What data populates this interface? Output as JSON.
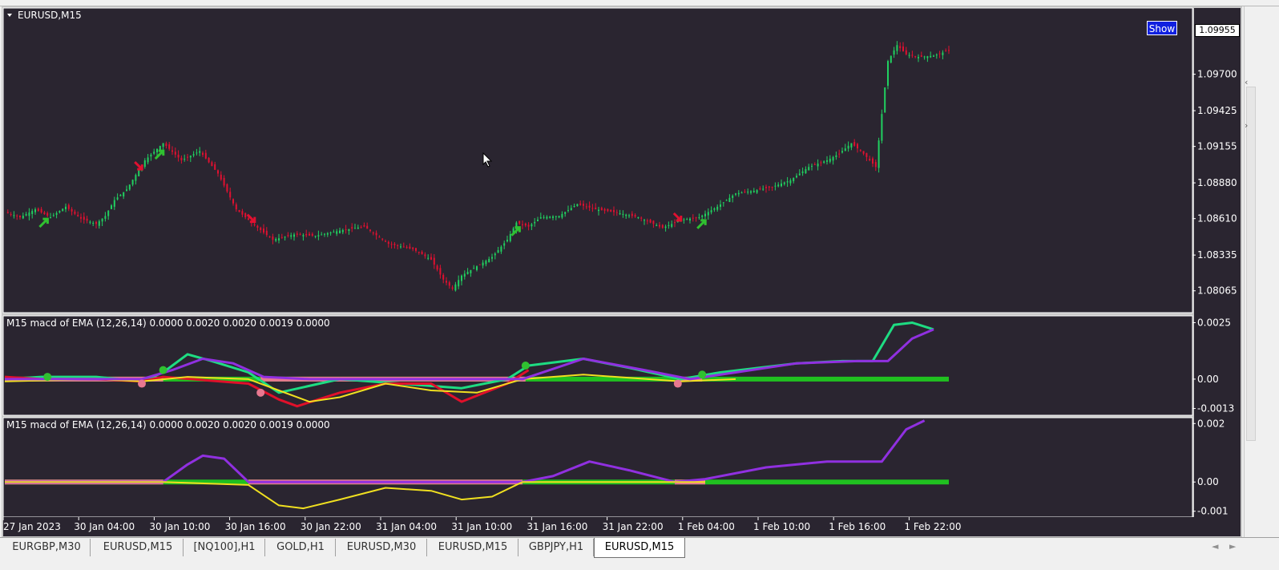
{
  "chart_data": [
    {
      "type": "candlestick",
      "title": "EURUSD,M15",
      "y_ticks": [
        1.097,
        1.09425,
        1.09155,
        1.0888,
        1.0861,
        1.08335,
        1.08065
      ],
      "y_tick_labels": [
        "1.09700",
        "1.09425",
        "1.09155",
        "1.08880",
        "1.08610",
        "1.08335",
        "1.08065"
      ],
      "current_price": "1.09955",
      "ylim": [
        1.079,
        1.102
      ],
      "close_path": [
        [
          0,
          1.0866
        ],
        [
          5,
          1.0862
        ],
        [
          10,
          1.0868
        ],
        [
          15,
          1.0862
        ],
        [
          20,
          1.087
        ],
        [
          25,
          1.0861
        ],
        [
          30,
          1.0857
        ],
        [
          33,
          1.0863
        ],
        [
          36,
          1.0875
        ],
        [
          40,
          1.0883
        ],
        [
          46,
          1.0905
        ],
        [
          52,
          1.0918
        ],
        [
          58,
          1.0905
        ],
        [
          64,
          1.0912
        ],
        [
          70,
          1.0895
        ],
        [
          76,
          1.0868
        ],
        [
          82,
          1.0856
        ],
        [
          88,
          1.0845
        ],
        [
          95,
          1.0849
        ],
        [
          102,
          1.0848
        ],
        [
          110,
          1.0852
        ],
        [
          118,
          1.0855
        ],
        [
          126,
          1.0842
        ],
        [
          134,
          1.0838
        ],
        [
          140,
          1.083
        ],
        [
          144,
          1.0815
        ],
        [
          147,
          1.0808
        ],
        [
          150,
          1.0818
        ],
        [
          155,
          1.0825
        ],
        [
          160,
          1.0832
        ],
        [
          165,
          1.0845
        ],
        [
          168,
          1.0858
        ],
        [
          172,
          1.0855
        ],
        [
          176,
          1.0862
        ],
        [
          182,
          1.0863
        ],
        [
          188,
          1.0872
        ],
        [
          194,
          1.0868
        ],
        [
          200,
          1.0866
        ],
        [
          208,
          1.0862
        ],
        [
          216,
          1.0854
        ],
        [
          222,
          1.086
        ],
        [
          228,
          1.0862
        ],
        [
          234,
          1.087
        ],
        [
          240,
          1.088
        ],
        [
          246,
          1.0882
        ],
        [
          252,
          1.0885
        ],
        [
          258,
          1.089
        ],
        [
          264,
          1.09
        ],
        [
          270,
          1.0905
        ],
        [
          274,
          1.091
        ],
        [
          278,
          1.0918
        ],
        [
          282,
          1.091
        ],
        [
          286,
          1.09
        ],
        [
          288,
          1.094
        ],
        [
          290,
          1.098
        ],
        [
          293,
          1.0992
        ],
        [
          296,
          1.0985
        ],
        [
          300,
          1.0983
        ],
        [
          305,
          1.0984
        ],
        [
          310,
          1.0988
        ]
      ],
      "markers": [
        {
          "type": "buy",
          "index": 13
        },
        {
          "type": "sell",
          "index": 44
        },
        {
          "type": "buy",
          "index": 51
        },
        {
          "type": "sell",
          "index": 81
        },
        {
          "type": "buy",
          "index": 168
        },
        {
          "type": "sell",
          "index": 221
        },
        {
          "type": "buy",
          "index": 229
        }
      ]
    },
    {
      "type": "line",
      "title": "M15 macd of EMA (12,26,14) 0.0000 0.0020 0.0020 0.0019 0.0000",
      "y_ticks": [
        0.0025,
        0.0,
        -0.0013
      ],
      "y_tick_labels": [
        "0.0025",
        "0.00",
        "-0.0013"
      ],
      "ylim": [
        -0.0016,
        0.0028
      ],
      "series": [
        {
          "color": "#1edc82",
          "kind": "macd_up",
          "values": [
            [
              0,
              0.0
            ],
            [
              12,
              0.0001
            ],
            [
              30,
              0.0001
            ],
            [
              45,
              -0.0001
            ],
            [
              52,
              0.0003
            ],
            [
              60,
              0.0011
            ],
            [
              68,
              0.0008
            ],
            [
              80,
              0.0003
            ],
            [
              90,
              -0.0006
            ],
            [
              110,
              0.0
            ],
            [
              150,
              -0.0004
            ],
            [
              165,
              0.0
            ],
            [
              172,
              0.0006
            ],
            [
              190,
              0.0009
            ],
            [
              205,
              0.0005
            ],
            [
              222,
              0.0
            ],
            [
              235,
              0.0003
            ],
            [
              260,
              0.0007
            ],
            [
              275,
              0.0008
            ],
            [
              285,
              0.0008
            ],
            [
              292,
              0.0024
            ],
            [
              298,
              0.0025
            ],
            [
              305,
              0.0022
            ]
          ]
        },
        {
          "color": "#e0102a",
          "kind": "macd_down",
          "values": [
            [
              0,
              0.0001
            ],
            [
              12,
              0.0
            ],
            [
              30,
              0.0
            ],
            [
              45,
              -0.0001
            ],
            [
              52,
              0.0001
            ],
            [
              80,
              -0.0002
            ],
            [
              90,
              -0.0009
            ],
            [
              96,
              -0.0012
            ],
            [
              110,
              -0.0006
            ],
            [
              125,
              -0.0002
            ],
            [
              140,
              -0.0002
            ],
            [
              150,
              -0.001
            ],
            [
              165,
              -0.0002
            ],
            [
              172,
              0.0004
            ]
          ]
        },
        {
          "color": "#f0e020",
          "kind": "signal",
          "values": [
            [
              0,
              -0.0001
            ],
            [
              30,
              0.0
            ],
            [
              45,
              -0.0001
            ],
            [
              60,
              0.0001
            ],
            [
              80,
              0.0
            ],
            [
              90,
              -0.0005
            ],
            [
              100,
              -0.001
            ],
            [
              110,
              -0.0008
            ],
            [
              125,
              -0.0002
            ],
            [
              140,
              -0.0005
            ],
            [
              155,
              -0.0006
            ],
            [
              170,
              0.0
            ],
            [
              190,
              0.0002
            ],
            [
              222,
              -0.0001
            ],
            [
              240,
              0.0
            ]
          ]
        },
        {
          "color": "#9030e0",
          "kind": "histogram_line",
          "values": [
            [
              0,
              0.0
            ],
            [
              45,
              0.0
            ],
            [
              55,
              0.0004
            ],
            [
              65,
              0.0009
            ],
            [
              75,
              0.0007
            ],
            [
              85,
              0.0001
            ],
            [
              100,
              0.0
            ],
            [
              170,
              0.0
            ],
            [
              190,
              0.0009
            ],
            [
              210,
              0.0004
            ],
            [
              225,
              0.0
            ],
            [
              240,
              0.0003
            ],
            [
              260,
              0.0007
            ],
            [
              280,
              0.0008
            ],
            [
              290,
              0.0008
            ],
            [
              298,
              0.0018
            ],
            [
              305,
              0.0022
            ]
          ]
        }
      ],
      "dots": [
        {
          "index": 14,
          "value": 0.0001,
          "color": "#30c030"
        },
        {
          "index": 45,
          "value": -0.0002,
          "color": "#e87890"
        },
        {
          "index": 52,
          "value": 0.0004,
          "color": "#30c030"
        },
        {
          "index": 84,
          "value": -0.0006,
          "color": "#e87890"
        },
        {
          "index": 171,
          "value": 0.0006,
          "color": "#30c030"
        },
        {
          "index": 221,
          "value": -0.0002,
          "color": "#e87890"
        },
        {
          "index": 229,
          "value": 0.0002,
          "color": "#30c030"
        }
      ]
    },
    {
      "type": "line",
      "title": "M15 macd of EMA (12,26,14) 0.0000 0.0020 0.0020 0.0019 0.0000",
      "y_ticks": [
        0.002,
        0.0,
        -0.001
      ],
      "y_tick_labels": [
        "0.002",
        "0.00",
        "-0.001"
      ],
      "ylim": [
        -0.0012,
        0.0022
      ],
      "series": [
        {
          "color": "#9030e0",
          "kind": "histogram_line",
          "values": [
            [
              0,
              0.0
            ],
            [
              15,
              0.0
            ],
            [
              40,
              0.0
            ],
            [
              52,
              0.0
            ],
            [
              60,
              0.0006
            ],
            [
              65,
              0.0009
            ],
            [
              72,
              0.0008
            ],
            [
              80,
              0.0
            ],
            [
              170,
              0.0
            ],
            [
              180,
              0.0002
            ],
            [
              192,
              0.0007
            ],
            [
              205,
              0.0004
            ],
            [
              220,
              0.0
            ],
            [
              230,
              0.0001
            ],
            [
              250,
              0.0005
            ],
            [
              270,
              0.0007
            ],
            [
              280,
              0.0007
            ],
            [
              288,
              0.0007
            ],
            [
              296,
              0.0018
            ],
            [
              302,
              0.0021
            ]
          ]
        },
        {
          "color": "#f0e020",
          "kind": "signal",
          "values": [
            [
              0,
              0.0
            ],
            [
              40,
              0.0
            ],
            [
              52,
              0.0
            ],
            [
              80,
              -0.0001
            ],
            [
              90,
              -0.0008
            ],
            [
              98,
              -0.0009
            ],
            [
              110,
              -0.0006
            ],
            [
              125,
              -0.0002
            ],
            [
              140,
              -0.0003
            ],
            [
              150,
              -0.0006
            ],
            [
              160,
              -0.0005
            ],
            [
              170,
              0.0
            ],
            [
              220,
              0.0
            ],
            [
              230,
              0.0
            ]
          ]
        }
      ]
    }
  ],
  "x_axis_labels": [
    "27 Jan 2023",
    "30 Jan 04:00",
    "30 Jan 10:00",
    "30 Jan 16:00",
    "30 Jan 22:00",
    "31 Jan 04:00",
    "31 Jan 10:00",
    "31 Jan 16:00",
    "31 Jan 22:00",
    "1 Feb 04:00",
    "1 Feb 10:00",
    "1 Feb 16:00",
    "1 Feb 22:00"
  ],
  "show_button": {
    "label": "Show"
  },
  "tabs": [
    {
      "label": "EURGBP,M30",
      "active": false
    },
    {
      "label": "EURUSD,M15",
      "active": false
    },
    {
      "label": "[NQ100],H1",
      "active": false
    },
    {
      "label": "GOLD,H1",
      "active": false
    },
    {
      "label": "EURUSD,M30",
      "active": false
    },
    {
      "label": "EURUSD,M15",
      "active": false
    },
    {
      "label": "GBPJPY,H1",
      "active": false
    },
    {
      "label": "EURUSD,M15",
      "active": true
    }
  ],
  "colors": {
    "background": "#2a2530",
    "bull": "#20d060",
    "bear": "#e01030",
    "zero_up": "#20c020",
    "zero_down": "#e87890",
    "axis_text": "#ffffff"
  }
}
